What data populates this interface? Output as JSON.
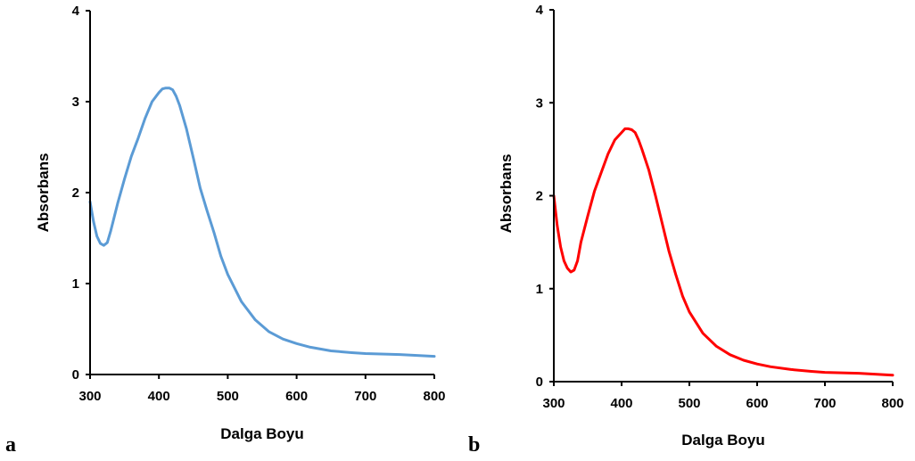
{
  "chart_data": [
    {
      "type": "line",
      "panel_label": "a",
      "xlabel": "Dalga Boyu",
      "ylabel": "Absorbans",
      "xlim": [
        300,
        800
      ],
      "ylim": [
        0,
        4
      ],
      "x_ticks": [
        "300",
        "400",
        "500",
        "600",
        "700",
        "800"
      ],
      "y_ticks": [
        "0",
        "1",
        "2",
        "3",
        "4"
      ],
      "grid": false,
      "color": "#5b9bd5",
      "series": [
        {
          "x": [
            300,
            305,
            310,
            315,
            320,
            325,
            330,
            340,
            350,
            360,
            370,
            380,
            390,
            400,
            405,
            410,
            415,
            420,
            425,
            430,
            440,
            450,
            460,
            470,
            480,
            490,
            500,
            520,
            540,
            560,
            580,
            600,
            620,
            650,
            680,
            700,
            750,
            800
          ],
          "y": [
            1.9,
            1.68,
            1.52,
            1.44,
            1.42,
            1.45,
            1.58,
            1.88,
            2.15,
            2.4,
            2.6,
            2.82,
            3.0,
            3.1,
            3.14,
            3.15,
            3.15,
            3.13,
            3.06,
            2.96,
            2.7,
            2.38,
            2.05,
            1.8,
            1.56,
            1.3,
            1.1,
            0.8,
            0.6,
            0.47,
            0.39,
            0.34,
            0.3,
            0.26,
            0.24,
            0.23,
            0.22,
            0.2
          ]
        }
      ]
    },
    {
      "type": "line",
      "panel_label": "b",
      "xlabel": "Dalga Boyu",
      "ylabel": "Absorbans",
      "xlim": [
        300,
        800
      ],
      "ylim": [
        0,
        4
      ],
      "x_ticks": [
        "300",
        "400",
        "500",
        "600",
        "700",
        "800"
      ],
      "y_ticks": [
        "0",
        "1",
        "2",
        "3",
        "4"
      ],
      "grid": false,
      "color": "#ff0000",
      "series": [
        {
          "x": [
            300,
            305,
            310,
            315,
            320,
            325,
            330,
            335,
            340,
            350,
            360,
            370,
            380,
            390,
            400,
            405,
            410,
            415,
            420,
            425,
            430,
            440,
            450,
            460,
            470,
            480,
            490,
            500,
            520,
            540,
            560,
            580,
            600,
            620,
            650,
            680,
            700,
            750,
            800
          ],
          "y": [
            2.0,
            1.68,
            1.45,
            1.3,
            1.22,
            1.18,
            1.2,
            1.3,
            1.5,
            1.78,
            2.05,
            2.25,
            2.45,
            2.6,
            2.68,
            2.72,
            2.72,
            2.71,
            2.68,
            2.6,
            2.5,
            2.28,
            2.0,
            1.7,
            1.4,
            1.15,
            0.92,
            0.75,
            0.52,
            0.38,
            0.29,
            0.23,
            0.19,
            0.16,
            0.13,
            0.11,
            0.1,
            0.09,
            0.07
          ]
        }
      ]
    }
  ]
}
